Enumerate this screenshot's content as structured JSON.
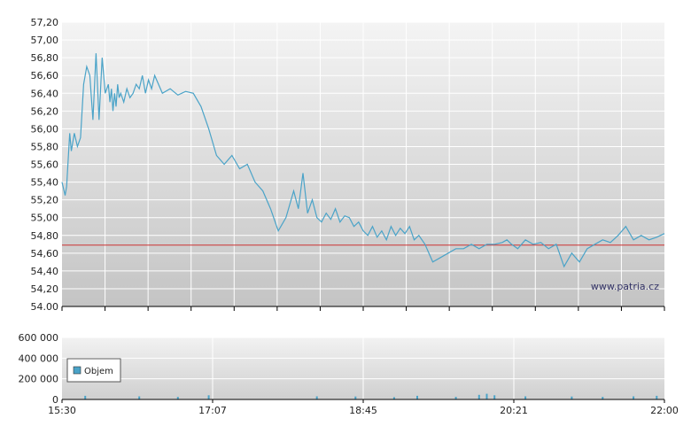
{
  "watermark": "www.patria.cz",
  "chart_data": [
    {
      "type": "line",
      "title": "",
      "xlabel": "",
      "ylabel": "",
      "ylim": [
        54.0,
        57.2
      ],
      "y_ticks": [
        "57,20",
        "57,00",
        "56,80",
        "56,60",
        "56,40",
        "56,20",
        "56,00",
        "55,80",
        "55,60",
        "55,40",
        "55,20",
        "55,00",
        "54,80",
        "54,60",
        "54,40",
        "54,20",
        "54.00"
      ],
      "x_ticks": [
        "15:30",
        "17:07",
        "18:45",
        "20:21",
        "22:00"
      ],
      "grid": true,
      "series_color": "#4aa3c8",
      "reference_line": {
        "value": 54.69,
        "color": "#cc3333"
      },
      "series": [
        {
          "x": [
            "15:30",
            "15:32",
            "15:33",
            "15:35",
            "15:36",
            "15:38",
            "15:40",
            "15:42",
            "15:44",
            "15:46",
            "15:48",
            "15:50",
            "15:52",
            "15:54",
            "15:56",
            "15:58",
            "16:00",
            "16:01",
            "16:02",
            "16:03",
            "16:04",
            "16:05",
            "16:06",
            "16:07",
            "16:08",
            "16:10",
            "16:12",
            "16:14",
            "16:16",
            "16:18",
            "16:20",
            "16:22",
            "16:24",
            "16:26",
            "16:28",
            "16:30",
            "16:35",
            "16:40",
            "16:45",
            "16:50",
            "16:55",
            "17:00",
            "17:05",
            "17:10",
            "17:15",
            "17:20",
            "17:25",
            "17:30",
            "17:35",
            "17:40",
            "17:45",
            "17:50",
            "17:55",
            "18:00",
            "18:03",
            "18:06",
            "18:09",
            "18:12",
            "18:15",
            "18:18",
            "18:21",
            "18:24",
            "18:27",
            "18:30",
            "18:33",
            "18:36",
            "18:39",
            "18:42",
            "18:45",
            "18:48",
            "18:51",
            "18:54",
            "18:57",
            "19:00",
            "19:03",
            "19:06",
            "19:09",
            "19:12",
            "19:15",
            "19:18",
            "19:21",
            "19:25",
            "19:30",
            "19:35",
            "19:40",
            "19:45",
            "19:50",
            "19:55",
            "20:00",
            "20:05",
            "20:10",
            "20:15",
            "20:18",
            "20:21",
            "20:25",
            "20:30",
            "20:35",
            "20:40",
            "20:45",
            "20:50",
            "20:55",
            "21:00",
            "21:05",
            "21:10",
            "21:15",
            "21:20",
            "21:25",
            "21:30",
            "21:35",
            "21:40",
            "21:45",
            "21:50",
            "21:55",
            "22:00"
          ],
          "y": [
            55.4,
            55.25,
            55.35,
            55.95,
            55.75,
            55.95,
            55.8,
            55.9,
            56.5,
            56.7,
            56.6,
            56.1,
            56.85,
            56.1,
            56.8,
            56.4,
            56.5,
            56.3,
            56.45,
            56.2,
            56.4,
            56.25,
            56.5,
            56.35,
            56.4,
            56.3,
            56.45,
            56.35,
            56.4,
            56.5,
            56.45,
            56.6,
            56.4,
            56.55,
            56.45,
            56.6,
            56.4,
            56.45,
            56.38,
            56.42,
            56.4,
            56.25,
            56.0,
            55.7,
            55.6,
            55.7,
            55.55,
            55.6,
            55.4,
            55.3,
            55.1,
            54.85,
            55.0,
            55.3,
            55.1,
            55.5,
            55.05,
            55.2,
            55.0,
            54.95,
            55.05,
            54.98,
            55.1,
            54.95,
            55.02,
            55.0,
            54.9,
            54.95,
            54.85,
            54.8,
            54.9,
            54.78,
            54.85,
            54.75,
            54.9,
            54.8,
            54.88,
            54.82,
            54.9,
            54.75,
            54.8,
            54.7,
            54.5,
            54.55,
            54.6,
            54.65,
            54.65,
            54.7,
            54.65,
            54.7,
            54.7,
            54.72,
            54.75,
            54.7,
            54.65,
            54.75,
            54.7,
            54.72,
            54.65,
            54.7,
            54.45,
            54.6,
            54.5,
            54.65,
            54.7,
            54.75,
            54.72,
            54.8,
            54.9,
            54.75,
            54.8,
            54.75,
            54.78,
            54.82
          ]
        }
      ]
    },
    {
      "type": "bar",
      "title": "",
      "ylim": [
        0,
        600000
      ],
      "y_ticks": [
        "600 000",
        "400 000",
        "200 000",
        "0"
      ],
      "x_ticks": [
        "15:30",
        "17:07",
        "18:45",
        "20:21",
        "22:00"
      ],
      "grid": true,
      "legend": {
        "entries": [
          "Objem"
        ],
        "placement": "left"
      },
      "bar_color": "#4aa3c8",
      "series": [
        {
          "name": "Objem",
          "x": [
            "15:45",
            "16:20",
            "16:45",
            "17:05",
            "18:15",
            "18:40",
            "19:05",
            "19:20",
            "19:45",
            "20:00",
            "20:05",
            "20:10",
            "20:30",
            "21:00",
            "21:20",
            "21:40",
            "21:55"
          ],
          "values": [
            35000,
            30000,
            25000,
            40000,
            30000,
            28000,
            22000,
            35000,
            25000,
            45000,
            55000,
            40000,
            30000,
            28000,
            25000,
            30000,
            35000
          ]
        }
      ]
    }
  ]
}
